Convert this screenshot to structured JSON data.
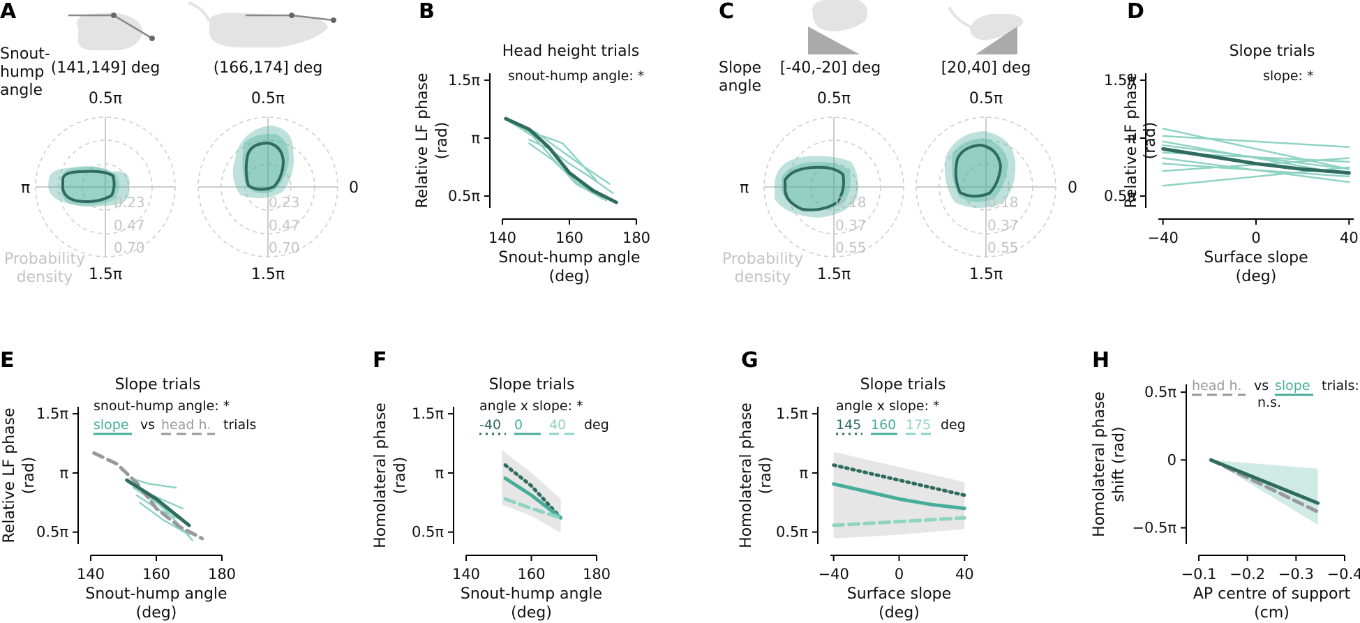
{
  "colors": {
    "dark": "#2f6b5e",
    "mid": "#45ad99",
    "light": "#8fd3c2",
    "paleFill": "#bfe6dc",
    "grey": "#999999",
    "lightgrey": "#c8c8c8"
  },
  "panels": {
    "A": {
      "letter": "A",
      "row_title": [
        "Snout-",
        "hump",
        "angle"
      ],
      "plots": [
        {
          "label": "(141,149] deg",
          "top": "0.5π",
          "bottom": "1.5π",
          "left": "π"
        },
        {
          "label": "(166,174] deg",
          "top": "0.5π",
          "bottom": "1.5π",
          "right": "0"
        }
      ],
      "radial_ticks": [
        "0.23",
        "0.47",
        "0.70"
      ],
      "density_label": [
        "Probability",
        "density"
      ]
    },
    "C": {
      "letter": "C",
      "row_title": [
        "Slope",
        "angle"
      ],
      "plots": [
        {
          "label": "[-40,-20] deg",
          "top": "0.5π",
          "bottom": "1.5π",
          "left": "π"
        },
        {
          "label": "[20,40] deg",
          "top": "0.5π",
          "bottom": "1.5π",
          "right": "0"
        }
      ],
      "radial_ticks": [
        "0.18",
        "0.37",
        "0.55"
      ],
      "density_label": [
        "Probability",
        "density"
      ]
    }
  },
  "chart_data": [
    {
      "panel": "B",
      "type": "line",
      "title": "Head height trials",
      "annotation": "snout-hump angle: *",
      "xlabel": [
        "Snout-hump angle",
        "(deg)"
      ],
      "ylabel": [
        "Relative LF phase",
        "(rad)"
      ],
      "xlim": [
        140,
        180
      ],
      "ylim": [
        1.25,
        4.9
      ],
      "xticks": [
        140,
        160,
        180
      ],
      "xtick_labels": [
        "140",
        "160",
        "180"
      ],
      "yticks": [
        1.5708,
        3.1416,
        4.7124
      ],
      "ytick_labels": [
        "0.5π",
        "π",
        "1.5π"
      ],
      "series": [
        {
          "role": "mean",
          "x": [
            141,
            148,
            154,
            160,
            167,
            174
          ],
          "y": [
            3.67,
            3.38,
            2.88,
            2.2,
            1.72,
            1.4
          ]
        },
        {
          "role": "individual",
          "x": [
            143,
            150,
            156,
            163,
            172
          ],
          "y": [
            3.55,
            3.3,
            2.9,
            2.45,
            1.9
          ]
        },
        {
          "role": "individual",
          "x": [
            142,
            149,
            155,
            162,
            171
          ],
          "y": [
            3.6,
            3.2,
            2.6,
            1.9,
            1.45
          ]
        },
        {
          "role": "individual",
          "x": [
            148,
            154,
            160,
            166,
            173
          ],
          "y": [
            3.1,
            2.85,
            2.45,
            2.1,
            1.65
          ]
        },
        {
          "role": "individual",
          "x": [
            148,
            155,
            162,
            170
          ],
          "y": [
            3.0,
            2.55,
            1.95,
            1.5
          ]
        },
        {
          "role": "individual",
          "x": [
            152,
            158,
            163,
            168
          ],
          "y": [
            3.2,
            3.0,
            2.5,
            2.0
          ]
        },
        {
          "role": "individual",
          "x": [
            145,
            152,
            160,
            168
          ],
          "y": [
            3.5,
            3.05,
            2.2,
            1.7
          ]
        }
      ]
    },
    {
      "panel": "D",
      "type": "line",
      "title": "Slope trials",
      "annotation": "slope: *",
      "xlabel": [
        "Surface slope",
        "(deg)"
      ],
      "ylabel": [
        "Relative LF phase",
        "(rad)"
      ],
      "xlim": [
        -42,
        42
      ],
      "ylim": [
        1.25,
        4.9
      ],
      "xticks": [
        -40,
        0,
        40
      ],
      "xtick_labels": [
        "−40",
        "0",
        "40"
      ],
      "yticks": [
        1.5708,
        3.1416,
        4.7124
      ],
      "ytick_labels": [
        "0.5π",
        "π",
        "1.5π"
      ],
      "series": [
        {
          "role": "mean",
          "x": [
            -40,
            -20,
            0,
            20,
            40
          ],
          "y": [
            2.85,
            2.65,
            2.45,
            2.3,
            2.2
          ]
        },
        {
          "role": "individual",
          "x": [
            -40,
            40
          ],
          "y": [
            3.4,
            2.3
          ]
        },
        {
          "role": "individual",
          "x": [
            -40,
            40
          ],
          "y": [
            3.2,
            2.9
          ]
        },
        {
          "role": "individual",
          "x": [
            -40,
            40
          ],
          "y": [
            3.05,
            2.15
          ]
        },
        {
          "role": "individual",
          "x": [
            -40,
            40
          ],
          "y": [
            2.95,
            2.3
          ]
        },
        {
          "role": "individual",
          "x": [
            -40,
            40
          ],
          "y": [
            2.75,
            2.5
          ]
        },
        {
          "role": "individual",
          "x": [
            -40,
            40
          ],
          "y": [
            2.6,
            1.95
          ]
        },
        {
          "role": "individual",
          "x": [
            -40,
            40
          ],
          "y": [
            2.45,
            2.1
          ]
        },
        {
          "role": "individual",
          "x": [
            -40,
            40
          ],
          "y": [
            2.25,
            2.6
          ]
        },
        {
          "role": "individual",
          "x": [
            -40,
            40
          ],
          "y": [
            1.85,
            2.35
          ]
        }
      ]
    },
    {
      "panel": "E",
      "type": "line",
      "title": "Slope trials",
      "annotation": "snout-hump angle: *",
      "legend": [
        {
          "label": "slope",
          "style": "solid"
        },
        {
          "text": "vs"
        },
        {
          "label": "head h.",
          "style": "dashed"
        },
        {
          "text": "trials"
        }
      ],
      "xlabel": [
        "Snout-hump angle",
        "(deg)"
      ],
      "ylabel": [
        "Relative LF phase",
        "(rad)"
      ],
      "xlim": [
        140,
        180
      ],
      "ylim": [
        1.25,
        4.9
      ],
      "xticks": [
        140,
        160,
        180
      ],
      "xtick_labels": [
        "140",
        "160",
        "180"
      ],
      "yticks": [
        1.5708,
        3.1416,
        4.7124
      ],
      "ytick_labels": [
        "0.5π",
        "π",
        "1.5π"
      ],
      "series": [
        {
          "name": "head h.",
          "role": "headh",
          "x": [
            141,
            148,
            154,
            160,
            167,
            174
          ],
          "y": [
            3.67,
            3.38,
            2.88,
            2.2,
            1.72,
            1.4
          ]
        },
        {
          "name": "slope",
          "role": "mean",
          "x": [
            151,
            160,
            170
          ],
          "y": [
            2.95,
            2.45,
            1.75
          ]
        },
        {
          "role": "individual",
          "x": [
            152,
            158,
            166
          ],
          "y": [
            3.0,
            2.85,
            2.75
          ]
        },
        {
          "role": "individual",
          "x": [
            152,
            160,
            168
          ],
          "y": [
            2.85,
            2.5,
            2.2
          ]
        },
        {
          "role": "individual",
          "x": [
            154,
            161,
            169
          ],
          "y": [
            2.55,
            2.15,
            1.85
          ]
        },
        {
          "role": "individual",
          "x": [
            155,
            162,
            170
          ],
          "y": [
            2.35,
            1.9,
            1.5
          ]
        },
        {
          "role": "individual",
          "x": [
            157,
            164,
            171
          ],
          "y": [
            2.6,
            2.05,
            1.35
          ]
        },
        {
          "role": "individual",
          "x": [
            153,
            160,
            167
          ],
          "y": [
            2.75,
            2.35,
            1.95
          ]
        }
      ]
    },
    {
      "panel": "F",
      "type": "line",
      "title": "Slope trials",
      "annotation": "angle x slope: *",
      "legend": [
        {
          "label": "-40",
          "style": "dotted",
          "shade": "dark"
        },
        {
          "label": "0",
          "style": "solid",
          "shade": "mid"
        },
        {
          "label": "40",
          "style": "dashed",
          "shade": "light"
        },
        {
          "text": "deg"
        }
      ],
      "xlabel": [
        "Snout-hump angle",
        "(deg)"
      ],
      "ylabel": [
        "Homolateral phase",
        "(rad)"
      ],
      "xlim": [
        140,
        180
      ],
      "ylim": [
        1.25,
        4.9
      ],
      "xticks": [
        140,
        160,
        180
      ],
      "xtick_labels": [
        "140",
        "160",
        "180"
      ],
      "yticks": [
        1.5708,
        3.1416,
        4.7124
      ],
      "ytick_labels": [
        "0.5π",
        "π",
        "1.5π"
      ],
      "series": [
        {
          "name": "-40",
          "style": "dotted",
          "shade": "dark",
          "x": [
            152,
            160,
            169
          ],
          "y": [
            3.35,
            2.8,
            1.95
          ]
        },
        {
          "name": "0",
          "style": "solid",
          "shade": "mid",
          "x": [
            152,
            160,
            169
          ],
          "y": [
            3.0,
            2.55,
            1.95
          ]
        },
        {
          "name": "40",
          "style": "dashed",
          "shade": "light",
          "x": [
            152,
            160,
            169
          ],
          "y": [
            2.45,
            2.2,
            1.95
          ]
        }
      ],
      "bands": [
        {
          "x": [
            151,
            160,
            169
          ],
          "upper": [
            3.75,
            3.15,
            2.45
          ],
          "lower": [
            2.3,
            2.0,
            1.55
          ]
        }
      ]
    },
    {
      "panel": "G",
      "type": "line",
      "title": "Slope trials",
      "annotation": "angle x slope: *",
      "legend": [
        {
          "label": "145",
          "style": "dotted",
          "shade": "dark"
        },
        {
          "label": "160",
          "style": "solid",
          "shade": "mid"
        },
        {
          "label": "175",
          "style": "dashed",
          "shade": "light"
        },
        {
          "text": "deg"
        }
      ],
      "xlabel": [
        "Surface slope",
        "(deg)"
      ],
      "ylabel": [
        "Homolateral phase",
        "(rad)"
      ],
      "xlim": [
        -42,
        42
      ],
      "ylim": [
        1.25,
        4.9
      ],
      "xticks": [
        -40,
        0,
        40
      ],
      "xtick_labels": [
        "−40",
        "0",
        "40"
      ],
      "yticks": [
        1.5708,
        3.1416,
        4.7124
      ],
      "ytick_labels": [
        "0.5π",
        "π",
        "1.5π"
      ],
      "series": [
        {
          "name": "145",
          "style": "dotted",
          "shade": "dark",
          "x": [
            -40,
            -20,
            0,
            20,
            40
          ],
          "y": [
            3.35,
            3.15,
            2.95,
            2.75,
            2.55
          ]
        },
        {
          "name": "160",
          "style": "solid",
          "shade": "mid",
          "x": [
            -40,
            -20,
            0,
            20,
            40
          ],
          "y": [
            2.85,
            2.65,
            2.45,
            2.3,
            2.2
          ]
        },
        {
          "name": "175",
          "style": "dashed",
          "shade": "light",
          "x": [
            -40,
            -20,
            0,
            20,
            40
          ],
          "y": [
            1.75,
            1.8,
            1.85,
            1.9,
            1.95
          ]
        }
      ],
      "bands": [
        {
          "x": [
            -40,
            0,
            40
          ],
          "upper": [
            3.7,
            3.3,
            2.9
          ],
          "lower": [
            1.4,
            1.5,
            1.65
          ]
        }
      ]
    },
    {
      "panel": "H",
      "type": "line",
      "title": "",
      "annotation": "n.s.",
      "legend": [
        {
          "label": "head h.",
          "style": "dashed"
        },
        {
          "text": "vs"
        },
        {
          "label": "slope",
          "style": "solid"
        },
        {
          "text": "trials:"
        }
      ],
      "xlabel": [
        "AP centre of support",
        "(cm)"
      ],
      "ylabel": [
        "Homolateral phase",
        "shift (rad)"
      ],
      "xlim": [
        -0.1,
        -0.4
      ],
      "ylim": [
        -1.95,
        1.75
      ],
      "xticks": [
        -0.1,
        -0.2,
        -0.3,
        -0.4
      ],
      "xtick_labels": [
        "−0.1",
        "−0.2",
        "−0.3",
        "−0.4"
      ],
      "yticks": [
        -1.5708,
        0,
        1.5708
      ],
      "ytick_labels": [
        "−0.5π",
        "0",
        "0.5π"
      ],
      "series": [
        {
          "name": "head h.",
          "role": "headh",
          "x": [
            -0.125,
            -0.345
          ],
          "y": [
            0,
            -1.2
          ]
        },
        {
          "name": "slope",
          "role": "mean",
          "x": [
            -0.125,
            -0.345
          ],
          "y": [
            0,
            -1.0
          ]
        }
      ],
      "bands": [
        {
          "x": [
            -0.125,
            -0.345
          ],
          "upper": [
            0,
            -0.2
          ],
          "lower": [
            0,
            -1.5
          ]
        }
      ]
    }
  ]
}
